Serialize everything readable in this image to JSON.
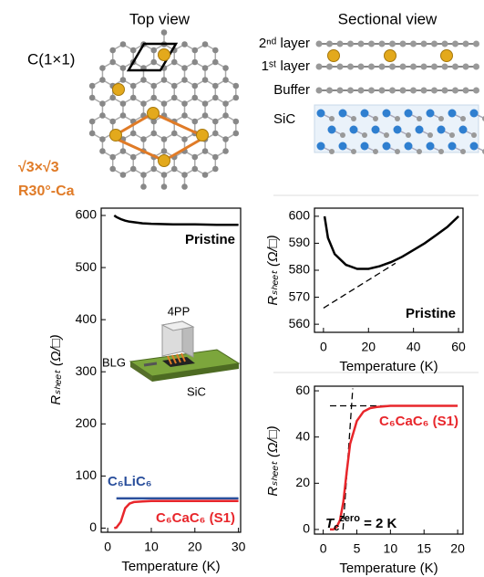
{
  "figure": {
    "top_view": {
      "title": "Top view",
      "cell_label": "C(1×1)",
      "ca_cell_label": [
        "√3×√3",
        "R30°-Ca"
      ]
    },
    "sectional_view": {
      "title": "Sectional view",
      "layers": [
        "2ⁿᵈ layer",
        "1ˢᵗ layer",
        "Buffer",
        "SiC"
      ]
    },
    "inset": {
      "probe": "4PP",
      "film": "BLG",
      "substrate": "SiC"
    }
  },
  "chart_data": [
    {
      "type": "line",
      "x_label": "Temperature (K)",
      "y_label": "Rₛₕₑₑₜ (Ω/□)",
      "x": [
        1.5,
        2,
        3,
        4,
        5,
        6,
        8,
        10,
        15,
        20,
        25,
        30
      ],
      "series": [
        {
          "name": "Pristine",
          "color": "#000000",
          "values": [
            600,
            597,
            593,
            590,
            588,
            587,
            585,
            584,
            583,
            583,
            582,
            582
          ]
        },
        {
          "name": "C₆LiC₆",
          "color": "#2a4f9c",
          "values": [
            null,
            57,
            57,
            57,
            57,
            57,
            57,
            57,
            57,
            57,
            57,
            57
          ]
        },
        {
          "name": "C₆CaC₆ (S1)",
          "color": "#e8262b",
          "values": [
            0,
            1,
            12,
            38,
            47,
            50,
            51,
            52,
            52,
            52,
            52,
            52
          ]
        }
      ],
      "xlim": [
        -1.5,
        30.5
      ],
      "ylim": [
        -8,
        614
      ],
      "xticks": [
        0,
        10,
        20,
        30
      ],
      "yticks": [
        0,
        100,
        200,
        300,
        400,
        500,
        600
      ]
    },
    {
      "type": "line",
      "x_label": "Temperature (K)",
      "y_label": "Rₛₕₑₑₜ (Ω/□)",
      "x": [
        0.5,
        2,
        5,
        10,
        15,
        20,
        25,
        30,
        35,
        40,
        45,
        50,
        55,
        60
      ],
      "series": [
        {
          "name": "Pristine",
          "color": "#000000",
          "values": [
            600,
            592,
            586,
            582,
            580.5,
            580.5,
            581.5,
            583,
            585,
            587.5,
            590,
            593,
            596,
            600
          ]
        }
      ],
      "guides": [
        {
          "x": [
            0,
            32
          ],
          "values": [
            566,
            582.6
          ]
        }
      ],
      "xlim": [
        -4,
        62
      ],
      "ylim": [
        557,
        603
      ],
      "xticks": [
        0,
        20,
        40,
        60
      ],
      "yticks": [
        560,
        570,
        580,
        590,
        600
      ]
    },
    {
      "type": "line",
      "x_label": "Temperature (K)",
      "y_label": "Rₛₕₑₑₜ (Ω/□)",
      "x": [
        1,
        1.5,
        2,
        2.5,
        3,
        3.5,
        4,
        5,
        6,
        7,
        8,
        10,
        15,
        20
      ],
      "series": [
        {
          "name": "C₆CaC₆ (S1)",
          "color": "#e8262b",
          "values": [
            0,
            0,
            1,
            4,
            12,
            25,
            37,
            47,
            51,
            52.5,
            53,
            53.5,
            53.5,
            53.5
          ]
        }
      ],
      "guides": [
        {
          "x": [
            1,
            20
          ],
          "values": [
            53.5,
            53.5
          ]
        },
        {
          "x": [
            2.95,
            4.4
          ],
          "values": [
            0,
            61
          ]
        }
      ],
      "annotation": {
        "symbol": "T",
        "subscript": "c",
        "superscript": "zero",
        "text": " = 2 K"
      },
      "xlim": [
        -1.3,
        20.8
      ],
      "ylim": [
        -2,
        62
      ],
      "xticks": [
        0,
        5,
        10,
        15,
        20
      ],
      "yticks": [
        0,
        20,
        40,
        60
      ]
    }
  ]
}
